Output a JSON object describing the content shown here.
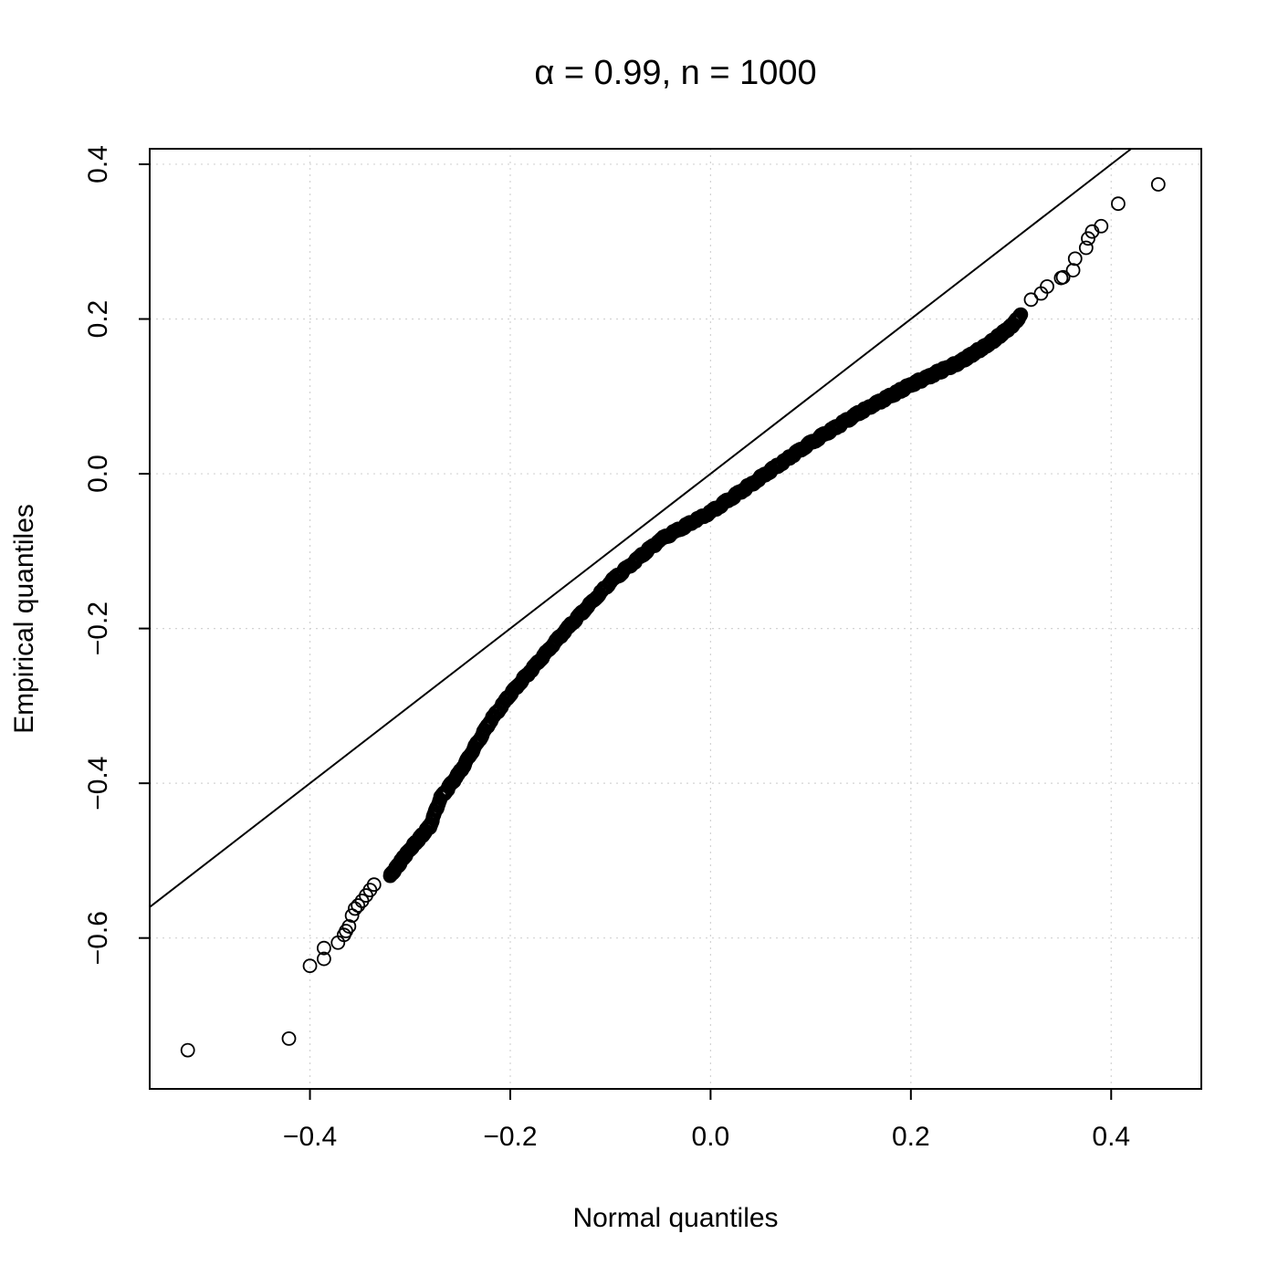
{
  "chart_data": {
    "type": "scatter",
    "title": "α = 0.99, n = 1000",
    "xlabel": "Normal quantiles",
    "ylabel": "Empirical quantiles",
    "xlim": [
      -0.56,
      0.49
    ],
    "ylim": [
      -0.795,
      0.42
    ],
    "x_ticks": [
      -0.4,
      -0.2,
      0.0,
      0.2,
      0.4
    ],
    "y_ticks": [
      -0.6,
      -0.4,
      -0.2,
      0.0,
      0.2,
      0.4
    ],
    "x_tick_labels": [
      "−0.4",
      "−0.2",
      "0.0",
      "0.2",
      "0.4"
    ],
    "y_tick_labels": [
      "−0.6",
      "−0.4",
      "−0.2",
      "0.0",
      "0.2",
      "0.4"
    ],
    "grid": true,
    "reference_line": {
      "intercept": 0,
      "slope": 1
    },
    "n_points": 1000,
    "series": [
      {
        "quantile_curve": [
          [
            -0.32,
            -0.52
          ],
          [
            -0.3,
            -0.485
          ],
          [
            -0.28,
            -0.455
          ],
          [
            -0.27,
            -0.42
          ],
          [
            -0.25,
            -0.385
          ],
          [
            -0.22,
            -0.32
          ],
          [
            -0.2,
            -0.285
          ],
          [
            -0.15,
            -0.21
          ],
          [
            -0.1,
            -0.14
          ],
          [
            -0.05,
            -0.085
          ],
          [
            0.0,
            -0.05
          ],
          [
            0.05,
            -0.005
          ],
          [
            0.1,
            0.04
          ],
          [
            0.15,
            0.08
          ],
          [
            0.2,
            0.115
          ],
          [
            0.25,
            0.145
          ],
          [
            0.28,
            0.17
          ],
          [
            0.3,
            0.19
          ],
          [
            0.31,
            0.205
          ]
        ],
        "outliers": [
          [
            -0.522,
            -0.745
          ],
          [
            -0.421,
            -0.73
          ],
          [
            -0.4,
            -0.636
          ],
          [
            -0.386,
            -0.627
          ],
          [
            -0.386,
            -0.613
          ],
          [
            -0.372,
            -0.606
          ],
          [
            -0.366,
            -0.596
          ],
          [
            -0.364,
            -0.591
          ],
          [
            -0.361,
            -0.585
          ],
          [
            -0.358,
            -0.571
          ],
          [
            -0.355,
            -0.562
          ],
          [
            -0.352,
            -0.558
          ],
          [
            -0.348,
            -0.552
          ],
          [
            -0.344,
            -0.545
          ],
          [
            -0.34,
            -0.538
          ],
          [
            -0.336,
            -0.531
          ],
          [
            0.32,
            0.225
          ],
          [
            0.33,
            0.233
          ],
          [
            0.336,
            0.242
          ],
          [
            0.35,
            0.253
          ],
          [
            0.352,
            0.254
          ],
          [
            0.362,
            0.263
          ],
          [
            0.364,
            0.278
          ],
          [
            0.375,
            0.292
          ],
          [
            0.377,
            0.304
          ],
          [
            0.381,
            0.313
          ],
          [
            0.39,
            0.32
          ],
          [
            0.407,
            0.349
          ],
          [
            0.447,
            0.374
          ]
        ]
      }
    ]
  }
}
